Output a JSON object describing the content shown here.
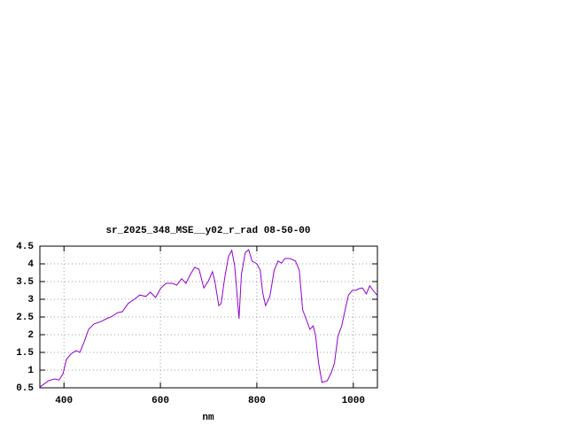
{
  "chart_data": {
    "type": "line",
    "title": "sr_2025_348_MSE__y02_r_rad 08-50-00",
    "x_label": "nm",
    "xlim": [
      350,
      1050
    ],
    "ylim": [
      0.5,
      4.5
    ],
    "xticks": [
      400,
      600,
      800,
      1000
    ],
    "yticks": [
      0.5,
      1,
      1.5,
      2,
      2.5,
      3,
      3.5,
      4,
      4.5
    ],
    "grid": true,
    "series": [
      {
        "color": "#9400d3",
        "x": [
          350,
          368,
          381,
          390,
          398,
          405,
          414,
          425,
          433,
          442,
          451,
          462,
          478,
          488,
          500,
          511,
          521,
          533,
          546,
          557,
          570,
          579,
          590,
          601,
          612,
          625,
          634,
          644,
          653,
          662,
          671,
          680,
          690,
          699,
          708,
          713,
          721,
          726,
          733,
          741,
          748,
          754,
          763,
          768,
          776,
          783,
          790,
          800,
          807,
          812,
          818,
          827,
          836,
          844,
          851,
          858,
          869,
          880,
          888,
          895,
          902,
          910,
          917,
          922,
          928,
          935,
          946,
          955,
          961,
          968,
          976,
          983,
          990,
          998,
          1005,
          1012,
          1019,
          1027,
          1034,
          1041,
          1049
        ],
        "values": [
          0.52,
          0.7,
          0.75,
          0.72,
          0.9,
          1.3,
          1.45,
          1.55,
          1.5,
          1.8,
          2.15,
          2.3,
          2.38,
          2.45,
          2.52,
          2.62,
          2.65,
          2.88,
          3.0,
          3.12,
          3.08,
          3.2,
          3.05,
          3.32,
          3.45,
          3.45,
          3.4,
          3.58,
          3.45,
          3.7,
          3.9,
          3.85,
          3.32,
          3.5,
          3.78,
          3.5,
          2.82,
          2.88,
          3.58,
          4.2,
          4.38,
          3.95,
          2.45,
          3.7,
          4.32,
          4.4,
          4.08,
          4.0,
          3.82,
          3.2,
          2.82,
          3.08,
          3.82,
          4.08,
          4.02,
          4.15,
          4.15,
          4.08,
          3.82,
          2.7,
          2.45,
          2.15,
          2.25,
          1.95,
          1.2,
          0.65,
          0.7,
          0.95,
          1.2,
          1.95,
          2.25,
          2.7,
          3.12,
          3.25,
          3.25,
          3.3,
          3.32,
          3.15,
          3.38,
          3.25,
          3.12
        ]
      }
    ]
  }
}
